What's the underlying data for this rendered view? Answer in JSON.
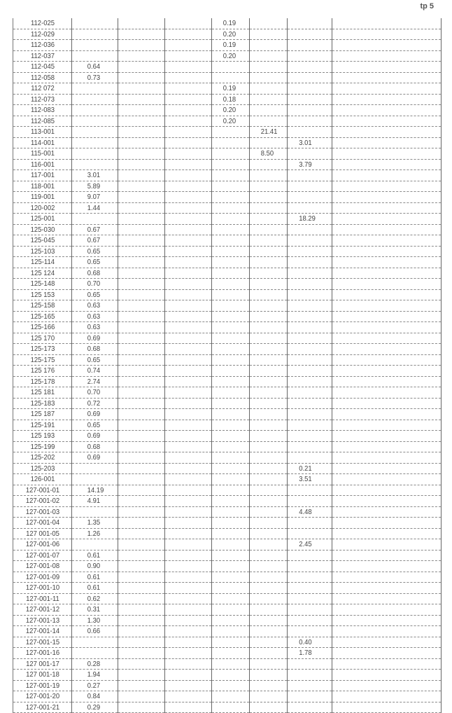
{
  "page_number": "tp 5",
  "rows": [
    [
      "112-025",
      "",
      "",
      "",
      "0.19",
      "",
      ""
    ],
    [
      "112-029",
      "",
      "",
      "",
      "0.20",
      "",
      ""
    ],
    [
      "112-036",
      "",
      "",
      "",
      "0.19",
      "",
      ""
    ],
    [
      "112-037",
      "",
      "",
      "",
      "0.20",
      "",
      ""
    ],
    [
      "112-045",
      "0.64",
      "",
      "",
      "",
      "",
      ""
    ],
    [
      "112-058",
      "0.73",
      "",
      "",
      "",
      "",
      ""
    ],
    [
      "112 072",
      "",
      "",
      "",
      "0.19",
      "",
      ""
    ],
    [
      "112-073",
      "",
      "",
      "",
      "0.18",
      "",
      ""
    ],
    [
      "112-083",
      "",
      "",
      "",
      "0.20",
      "",
      ""
    ],
    [
      "112-085",
      "",
      "",
      "",
      "0.20",
      "",
      ""
    ],
    [
      "113-001",
      "",
      "",
      "",
      "",
      "21.41",
      ""
    ],
    [
      "114-001",
      "",
      "",
      "",
      "",
      "",
      "3.01"
    ],
    [
      "115-001",
      "",
      "",
      "",
      "",
      "8.50",
      ""
    ],
    [
      "116-001",
      "",
      "",
      "",
      "",
      "",
      "3.79"
    ],
    [
      "117-001",
      "3.01",
      "",
      "",
      "",
      "",
      ""
    ],
    [
      "118-001",
      "5.89",
      "",
      "",
      "",
      "",
      ""
    ],
    [
      "119-001",
      "9.07",
      "",
      "",
      "",
      "",
      ""
    ],
    [
      "120-002",
      "1.44",
      "",
      "",
      "",
      "",
      ""
    ],
    [
      "125-001",
      "",
      "",
      "",
      "",
      "",
      "18.29"
    ],
    [
      "125-030",
      "0.67",
      "",
      "",
      "",
      "",
      ""
    ],
    [
      "125-045",
      "0.67",
      "",
      "",
      "",
      "",
      ""
    ],
    [
      "125-103",
      "0.65",
      "",
      "",
      "",
      "",
      ""
    ],
    [
      "125-114",
      "0.65",
      "",
      "",
      "",
      "",
      ""
    ],
    [
      "125 124",
      "0.68",
      "",
      "",
      "",
      "",
      ""
    ],
    [
      "125-148",
      "0.70",
      "",
      "",
      "",
      "",
      ""
    ],
    [
      "125 153",
      "0.65",
      "",
      "",
      "",
      "",
      ""
    ],
    [
      "125-158",
      "0.63",
      "",
      "",
      "",
      "",
      ""
    ],
    [
      "125-165",
      "0.63",
      "",
      "",
      "",
      "",
      ""
    ],
    [
      "125-166",
      "0.63",
      "",
      "",
      "",
      "",
      ""
    ],
    [
      "125 170",
      "0.69",
      "",
      "",
      "",
      "",
      ""
    ],
    [
      "125-173",
      "0.68",
      "",
      "",
      "",
      "",
      ""
    ],
    [
      "125-175",
      "0.65",
      "",
      "",
      "",
      "",
      ""
    ],
    [
      "125 176",
      "0.74",
      "",
      "",
      "",
      "",
      ""
    ],
    [
      "125-178",
      "2.74",
      "",
      "",
      "",
      "",
      ""
    ],
    [
      "125 181",
      "0.70",
      "",
      "",
      "",
      "",
      ""
    ],
    [
      "125-183",
      "0.72",
      "",
      "",
      "",
      "",
      ""
    ],
    [
      "125 187",
      "0.69",
      "",
      "",
      "",
      "",
      ""
    ],
    [
      "125-191",
      "0.65",
      "",
      "",
      "",
      "",
      ""
    ],
    [
      "125 193",
      "0.69",
      "",
      "",
      "",
      "",
      ""
    ],
    [
      "125-199",
      "0.68",
      "",
      "",
      "",
      "",
      ""
    ],
    [
      "125-202",
      "0.69",
      "",
      "",
      "",
      "",
      ""
    ],
    [
      "125-203",
      "",
      "",
      "",
      "",
      "",
      "0.21"
    ],
    [
      "126-001",
      "",
      "",
      "",
      "",
      "",
      "3.51"
    ],
    [
      "127-001-01",
      "14.19",
      "",
      "",
      "",
      "",
      ""
    ],
    [
      "127-001-02",
      "4.91",
      "",
      "",
      "",
      "",
      ""
    ],
    [
      "127-001-03",
      "",
      "",
      "",
      "",
      "",
      "4.48"
    ],
    [
      "127-001-04",
      "1.35",
      "",
      "",
      "",
      "",
      ""
    ],
    [
      "127 001-05",
      "1.26",
      "",
      "",
      "",
      "",
      ""
    ],
    [
      "127-001-06",
      "",
      "",
      "",
      "",
      "",
      "2.45"
    ],
    [
      "127-001-07",
      "0.61",
      "",
      "",
      "",
      "",
      ""
    ],
    [
      "127-001-08",
      "0.90",
      "",
      "",
      "",
      "",
      ""
    ],
    [
      "127-001-09",
      "0.61",
      "",
      "",
      "",
      "",
      ""
    ],
    [
      "127-001-10",
      "0.61",
      "",
      "",
      "",
      "",
      ""
    ],
    [
      "127-001-11",
      "0.62",
      "",
      "",
      "",
      "",
      ""
    ],
    [
      "127-001-12",
      "0.31",
      "",
      "",
      "",
      "",
      ""
    ],
    [
      "127-001-13",
      "1.30",
      "",
      "",
      "",
      "",
      ""
    ],
    [
      "127-001-14",
      "0.66",
      "",
      "",
      "",
      "",
      ""
    ],
    [
      "127-001-15",
      "",
      "",
      "",
      "",
      "",
      "0.40"
    ],
    [
      "127-001-16",
      "",
      "",
      "",
      "",
      "",
      "1.78"
    ],
    [
      "127 001-17",
      "0.28",
      "",
      "",
      "",
      "",
      ""
    ],
    [
      "127 001-18",
      "1.94",
      "",
      "",
      "",
      "",
      ""
    ],
    [
      "127-001-19",
      "0.27",
      "",
      "",
      "",
      "",
      ""
    ],
    [
      "127-001-20",
      "0.84",
      "",
      "",
      "",
      "",
      ""
    ],
    [
      "127-001-21",
      "0.29",
      "",
      "",
      "",
      "",
      ""
    ]
  ]
}
